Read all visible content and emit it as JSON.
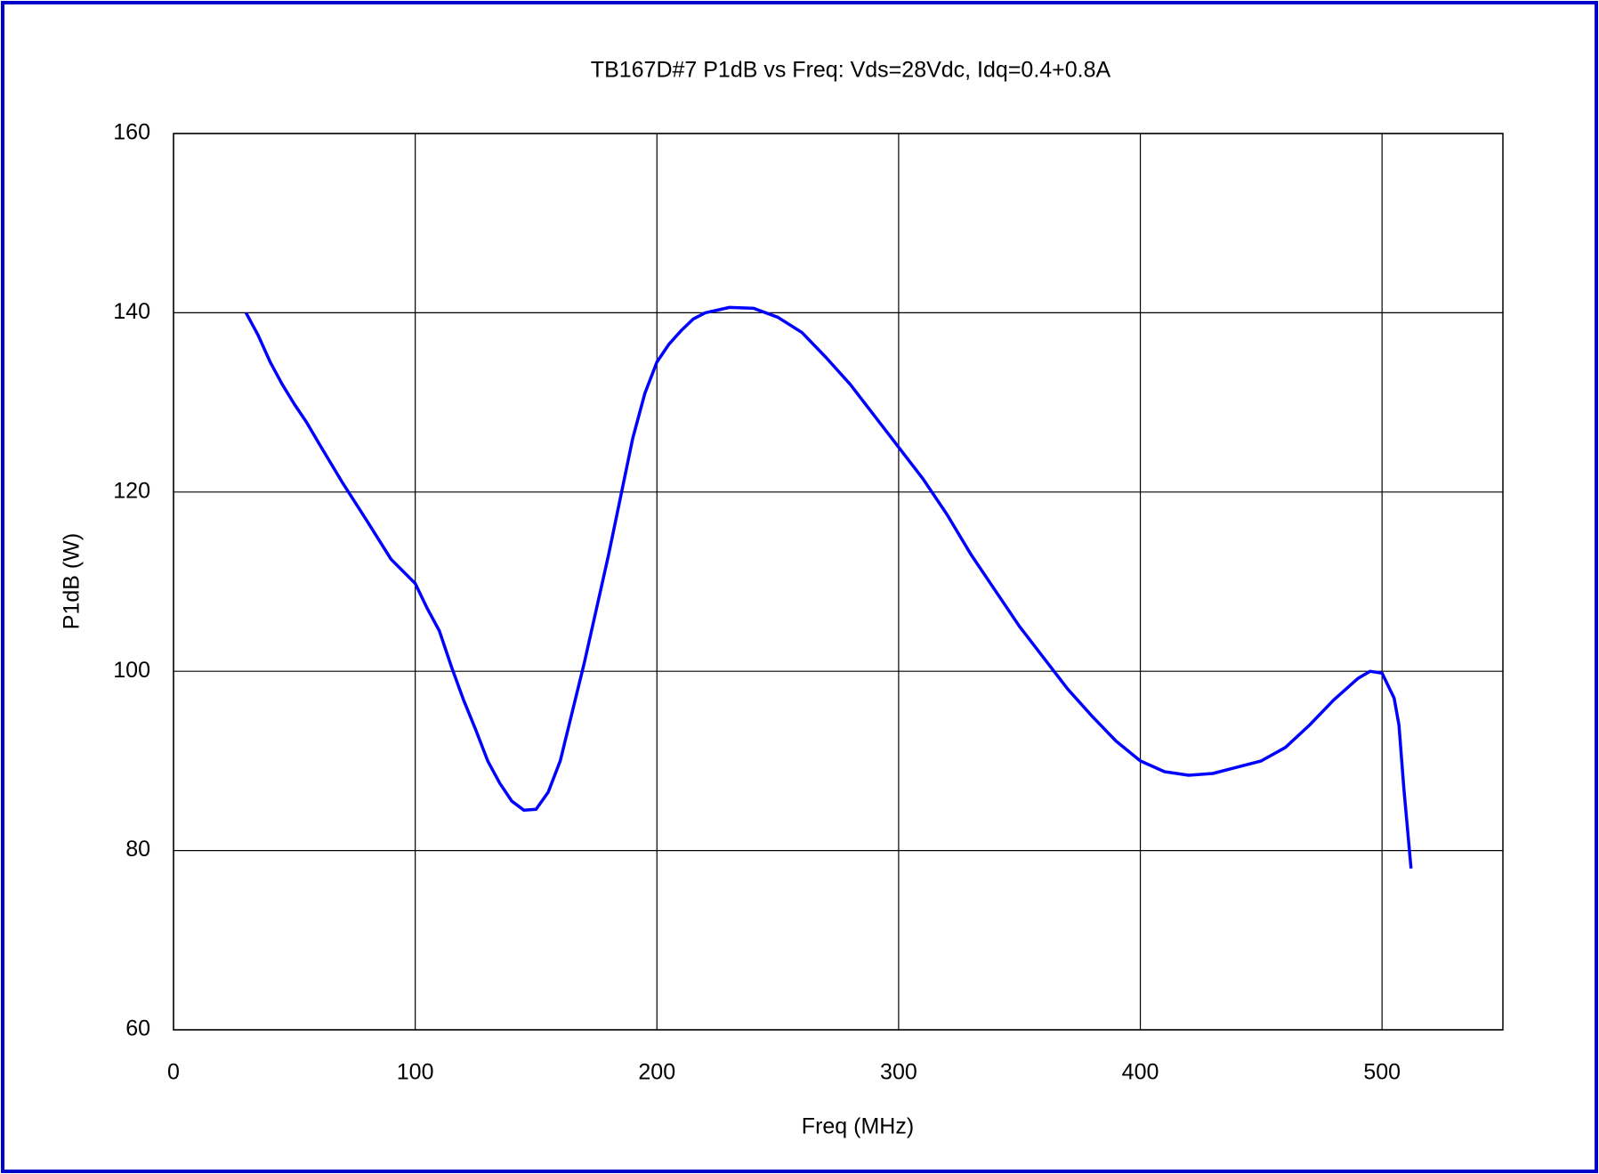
{
  "chart_data": {
    "type": "line",
    "title": "TB167D#7 P1dB vs Freq: Vds=28Vdc, Idq=0.4+0.8A",
    "x_label": "Freq (MHz)",
    "y_label": "P1dB (W)",
    "x": [
      30,
      35,
      40,
      45,
      50,
      55,
      60,
      70,
      80,
      90,
      100,
      105,
      110,
      115,
      120,
      125,
      130,
      135,
      140,
      145,
      150,
      155,
      160,
      165,
      170,
      175,
      180,
      185,
      190,
      195,
      200,
      205,
      210,
      215,
      220,
      230,
      240,
      250,
      260,
      270,
      280,
      290,
      300,
      310,
      320,
      330,
      340,
      350,
      360,
      370,
      380,
      390,
      400,
      410,
      420,
      430,
      440,
      450,
      460,
      470,
      480,
      490,
      495,
      500,
      505,
      507,
      509,
      511,
      512
    ],
    "series": [
      {
        "name": "P1dB",
        "color": "#0000ff",
        "values": [
          140,
          137.5,
          134.5,
          132,
          129.8,
          127.8,
          125.5,
          121,
          116.8,
          112.5,
          109.8,
          107,
          104.5,
          100.5,
          96.8,
          93.5,
          90,
          87.5,
          85.5,
          84.5,
          84.6,
          86.5,
          90,
          95.5,
          101,
          107,
          113,
          119.5,
          126,
          131,
          134.5,
          136.5,
          138,
          139.3,
          140,
          140.6,
          140.5,
          139.5,
          137.8,
          135,
          132,
          128.5,
          125,
          121.5,
          117.5,
          113,
          109,
          105,
          101.5,
          98,
          95,
          92.2,
          90,
          88.8,
          88.4,
          88.6,
          89.3,
          90,
          91.5,
          94,
          96.8,
          99.2,
          100,
          99.8,
          97,
          94,
          87,
          81,
          78
        ]
      }
    ],
    "xlim": [
      0,
      550
    ],
    "xticks": [
      0,
      100,
      200,
      300,
      400,
      500
    ],
    "ylim": [
      60,
      160
    ],
    "yticks": [
      60,
      80,
      100,
      120,
      140,
      160
    ],
    "grid": true
  }
}
